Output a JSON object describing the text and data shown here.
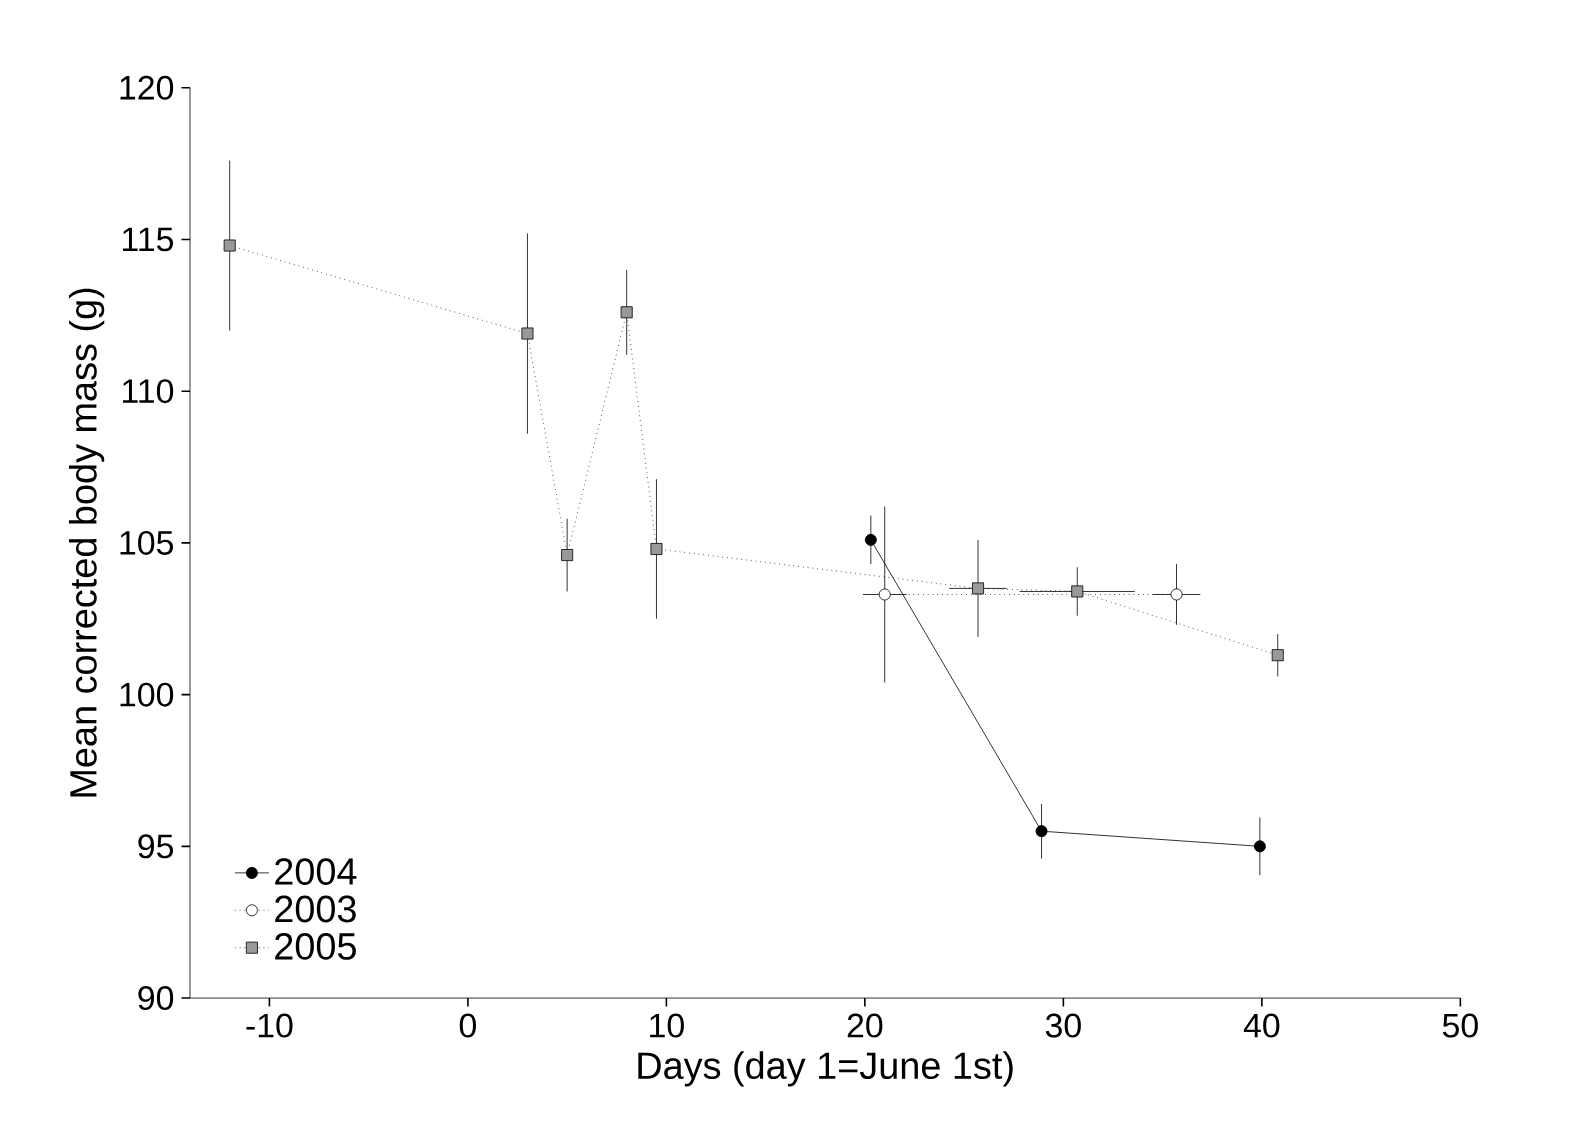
{
  "chart_data": {
    "type": "line",
    "xlabel": "Days (day 1=June 1st)",
    "ylabel": "Mean corrected body mass (g)",
    "xlim": [
      -14,
      50
    ],
    "xticks": [
      -10,
      0,
      10,
      20,
      30,
      40,
      50
    ],
    "ylim": [
      90,
      120
    ],
    "yticks": [
      90,
      95,
      100,
      105,
      110,
      115,
      120
    ],
    "grid": false,
    "legend": "bottom left",
    "series": [
      {
        "name": "2004",
        "color": "#000000",
        "marker": "circle",
        "line_style": "solid",
        "x": [
          20.3,
          28.9,
          39.9
        ],
        "values": [
          105.1,
          95.5,
          95.0
        ],
        "errors": [
          0.8,
          0.9,
          0.95
        ]
      },
      {
        "name": "2003",
        "color": "#ffffff",
        "marker": "circle",
        "line_style": "dotted",
        "x": [
          21,
          35.7
        ],
        "values": [
          103.3,
          103.3
        ],
        "errors": [
          2.9,
          1.0
        ],
        "xerrors": [
          1.1,
          1.2
        ]
      },
      {
        "name": "2005",
        "color": "#999999",
        "marker": "square",
        "line_style": "dotted",
        "x": [
          -12,
          3,
          5,
          8,
          9.5,
          25.7,
          30.7,
          40.8
        ],
        "values": [
          114.8,
          111.9,
          104.6,
          112.6,
          104.8,
          103.5,
          103.4,
          101.3
        ],
        "errors": [
          2.8,
          3.3,
          1.2,
          1.4,
          2.3,
          1.6,
          0.8,
          0.7
        ],
        "xerrors": [
          null,
          null,
          null,
          null,
          null,
          1.45,
          2.9,
          null
        ]
      }
    ]
  }
}
